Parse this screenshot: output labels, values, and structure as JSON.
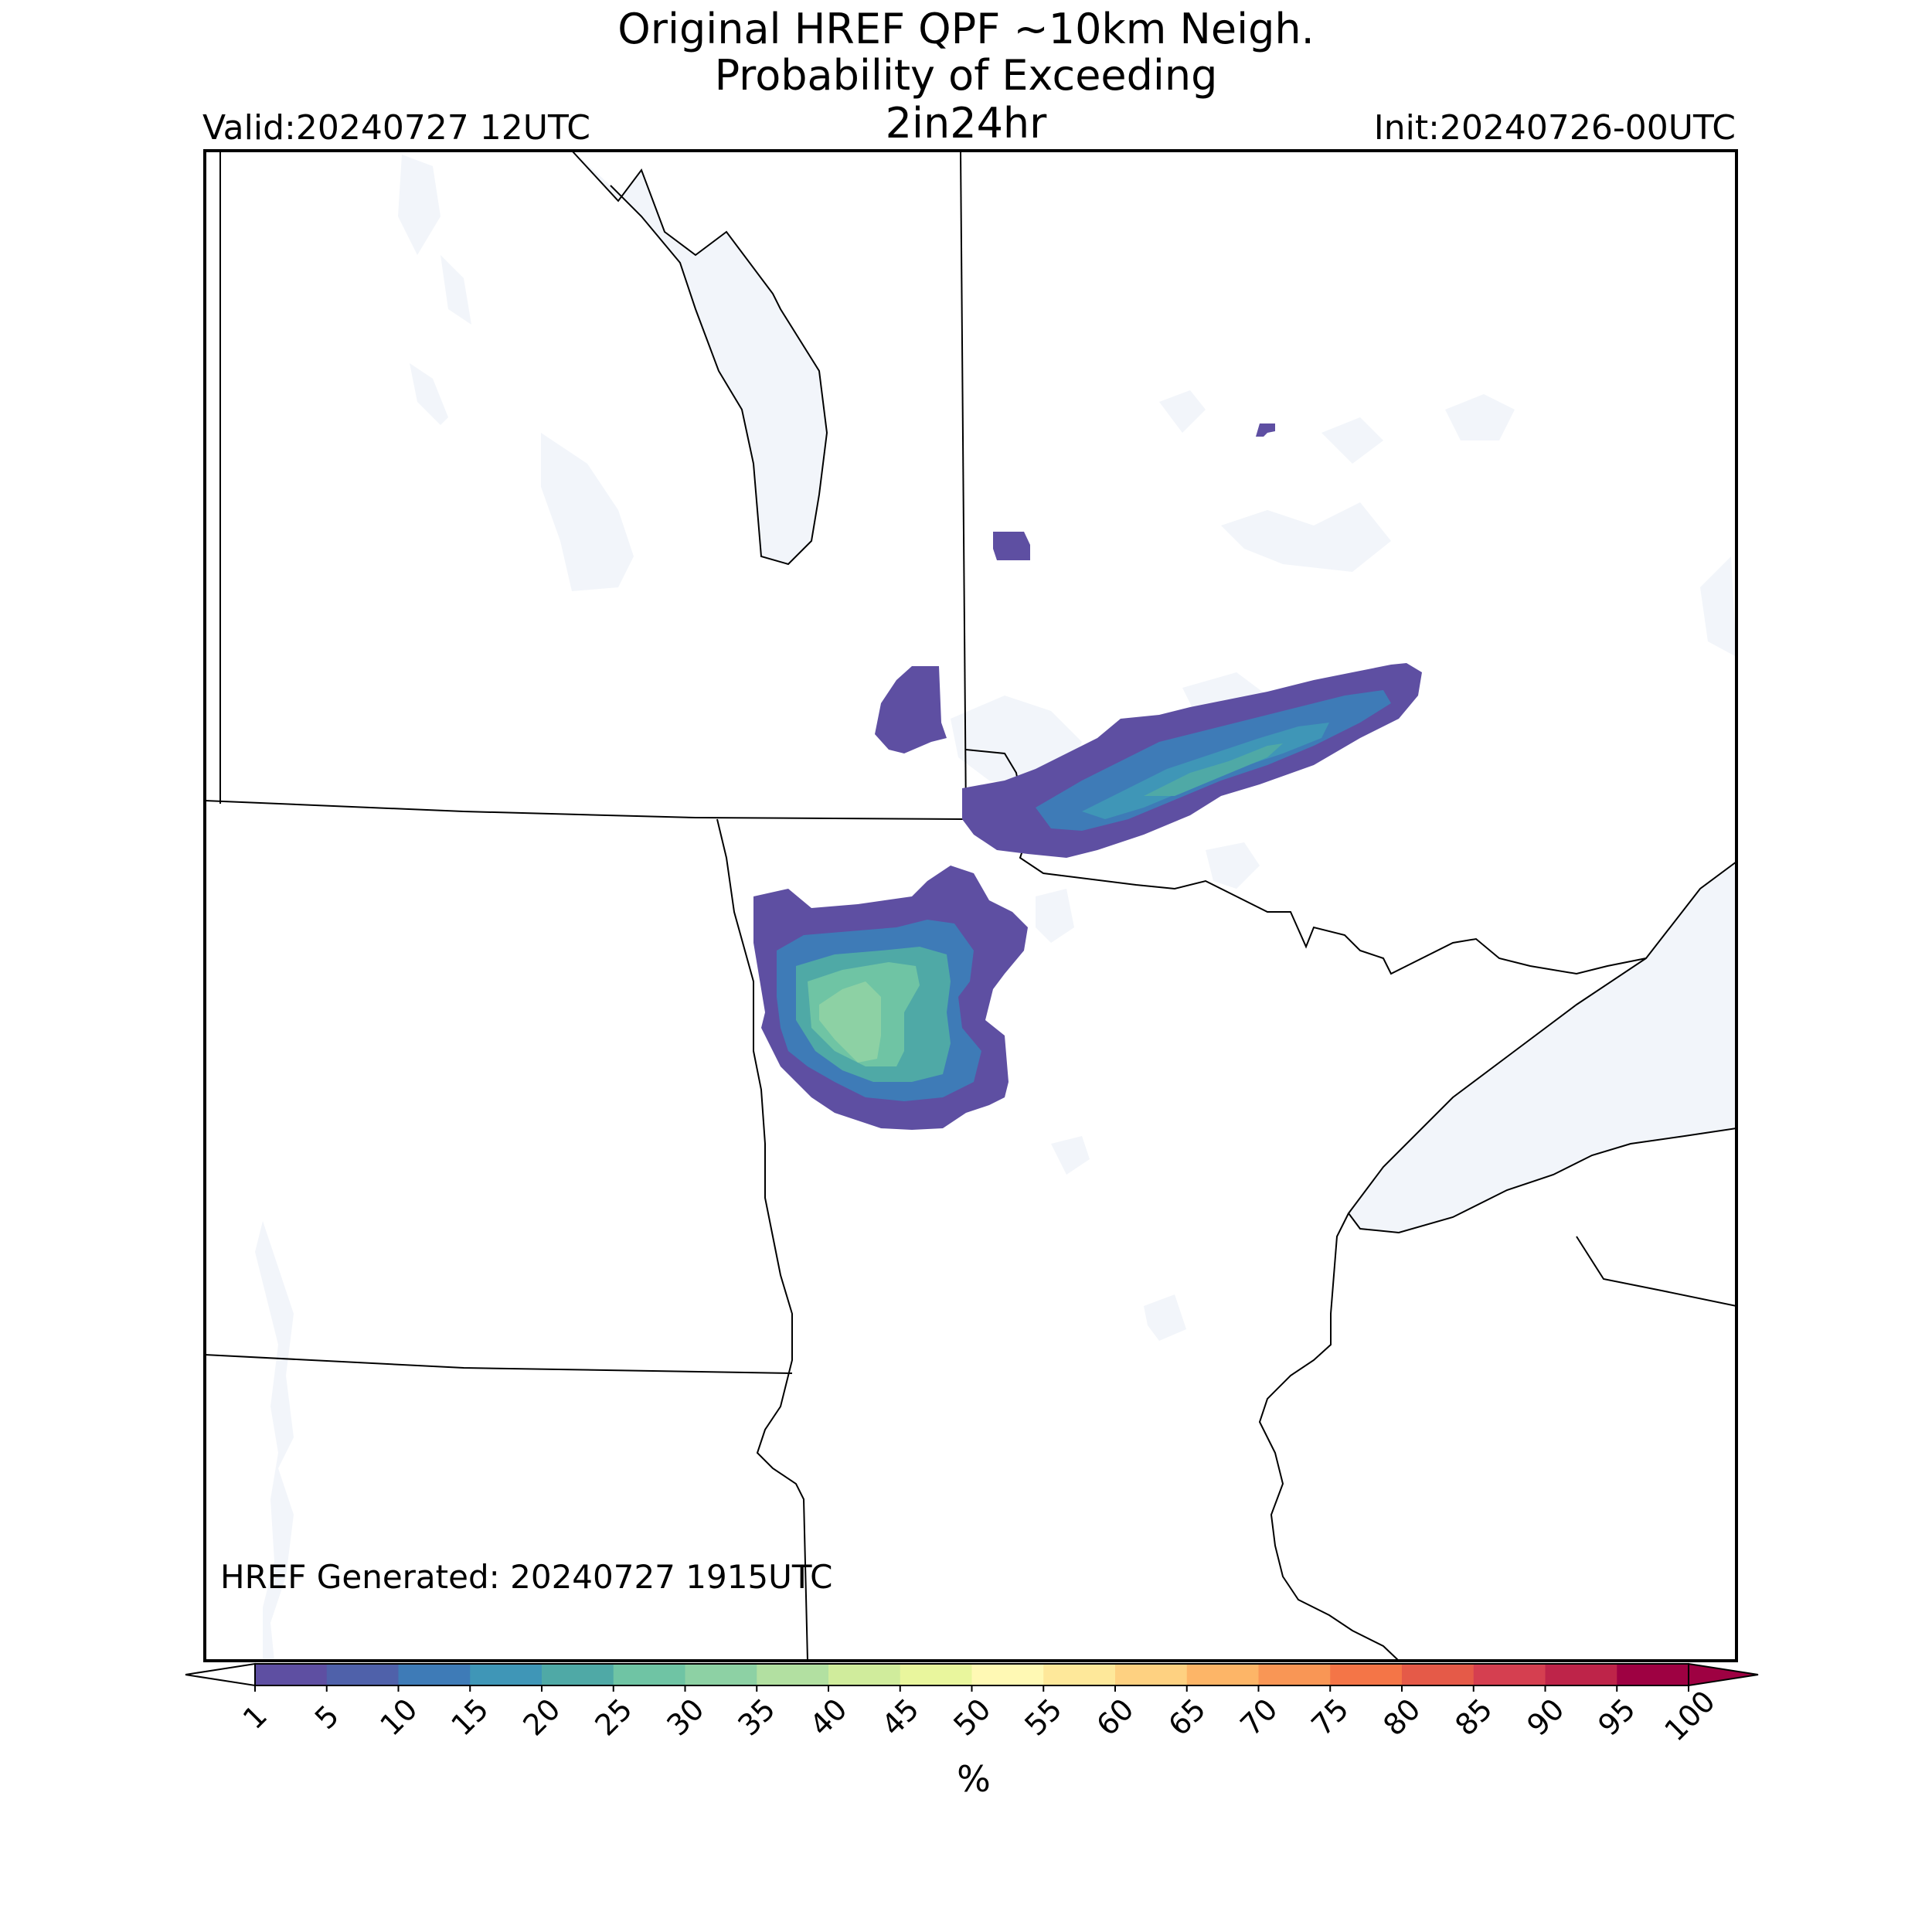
{
  "title": {
    "line1": "Original HREF QPF ~10km Neigh.",
    "line2": "Probability of Exceeding",
    "line3": "2in24hr"
  },
  "valid": "Valid:20240727 12UTC",
  "init": "Init:20240726-00UTC",
  "generated": "HREF Generated: 20240727 1915UTC",
  "colorbar": {
    "ticks": [
      "1",
      "5",
      "10",
      "15",
      "20",
      "25",
      "30",
      "35",
      "40",
      "45",
      "50",
      "55",
      "60",
      "65",
      "70",
      "75",
      "80",
      "85",
      "90",
      "95",
      "100"
    ],
    "colors": [
      "#5e4fa2",
      "#4f61aa",
      "#3e7bb7",
      "#3f96b7",
      "#4fa9a6",
      "#6fc4a4",
      "#8dd1a4",
      "#b2e0a1",
      "#d0ec9c",
      "#e9f69d",
      "#fff9b4",
      "#fee89a",
      "#fed181",
      "#fdb567",
      "#f99655",
      "#f47547",
      "#e55a48",
      "#d53f50",
      "#be2449",
      "#9e0142"
    ],
    "unit": "%"
  },
  "colors": {
    "water": "#f2f5fa",
    "border": "#000000"
  }
}
